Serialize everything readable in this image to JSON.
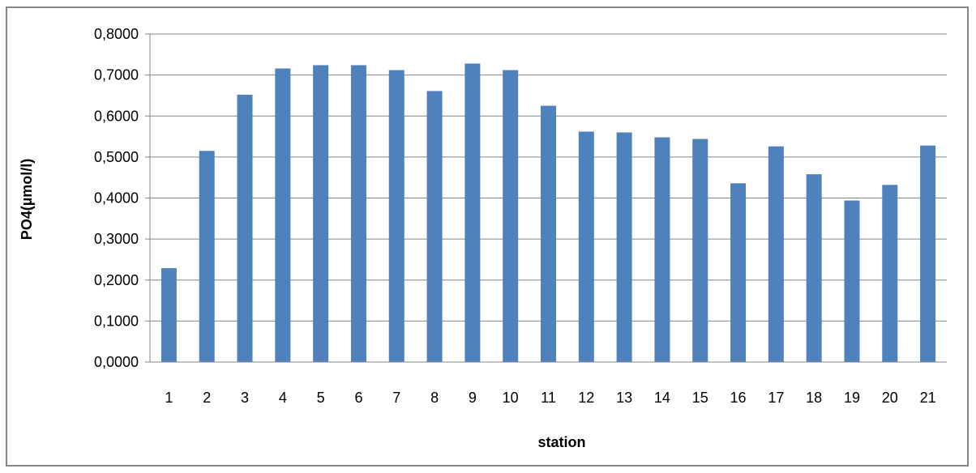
{
  "chart_data": {
    "type": "bar",
    "title": "",
    "xlabel": "station",
    "ylabel": "PO4(µmol/l)",
    "categories": [
      "1",
      "2",
      "3",
      "4",
      "5",
      "6",
      "7",
      "8",
      "9",
      "10",
      "11",
      "12",
      "13",
      "14",
      "15",
      "16",
      "17",
      "18",
      "19",
      "20",
      "21"
    ],
    "series": [
      {
        "values": [
          0.229,
          0.515,
          0.652,
          0.716,
          0.724,
          0.724,
          0.712,
          0.661,
          0.728,
          0.712,
          0.625,
          0.562,
          0.56,
          0.548,
          0.544,
          0.436,
          0.526,
          0.458,
          0.394,
          0.432,
          0.528
        ]
      }
    ],
    "ylim": [
      0,
      0.8
    ],
    "y_ticks": [
      "0,0000",
      "0,1000",
      "0,2000",
      "0,3000",
      "0,4000",
      "0,5000",
      "0,6000",
      "0,7000",
      "0,8000"
    ],
    "grid": true,
    "legend": "none",
    "bar_color": "#4f81bd",
    "grid_color": "#868686"
  }
}
